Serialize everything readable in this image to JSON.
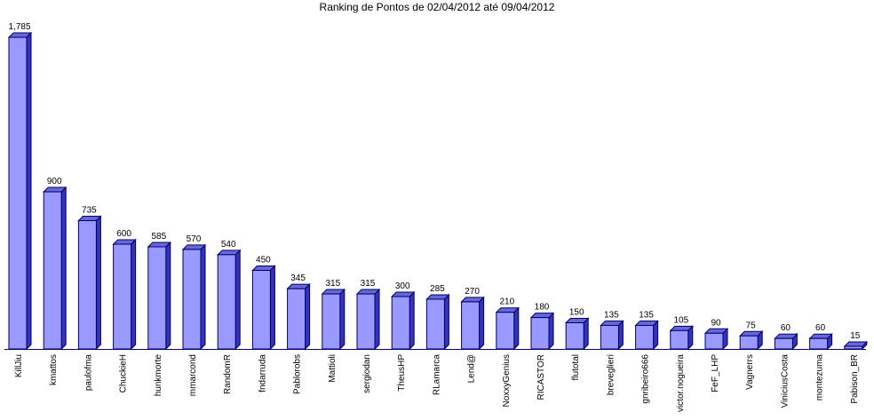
{
  "chart_data": {
    "type": "bar3d",
    "title": "Ranking de Pontos de 02/04/2012 até 09/04/2012",
    "categories": [
      "KillJiu",
      "kmattos",
      "paulofma",
      "ChuckieH",
      "hunkmorte",
      "mmarcond",
      "RandomR",
      "fndarruda",
      "Pablorobs",
      "Mattioli",
      "sergiodan",
      "TheusHP",
      "RLamarca",
      "Lend@",
      "NoxxyGenius",
      "RICASTOR",
      "flutotal",
      "breveglieri",
      "gnribeiro666",
      "victor.nogueira",
      "FeF_LHP",
      "Vagnerrs",
      "ViniciusCosta",
      "montezuma",
      "Pabison_BR"
    ],
    "values": [
      1785,
      900,
      735,
      600,
      585,
      570,
      540,
      450,
      345,
      315,
      315,
      300,
      285,
      270,
      210,
      180,
      150,
      135,
      135,
      105,
      90,
      75,
      60,
      60,
      15
    ],
    "value_labels": [
      "1,785",
      "900",
      "735",
      "600",
      "585",
      "570",
      "540",
      "450",
      "345",
      "315",
      "315",
      "300",
      "285",
      "270",
      "210",
      "180",
      "150",
      "135",
      "135",
      "105",
      "90",
      "75",
      "60",
      "60",
      "15"
    ],
    "color": "#9999ff"
  }
}
